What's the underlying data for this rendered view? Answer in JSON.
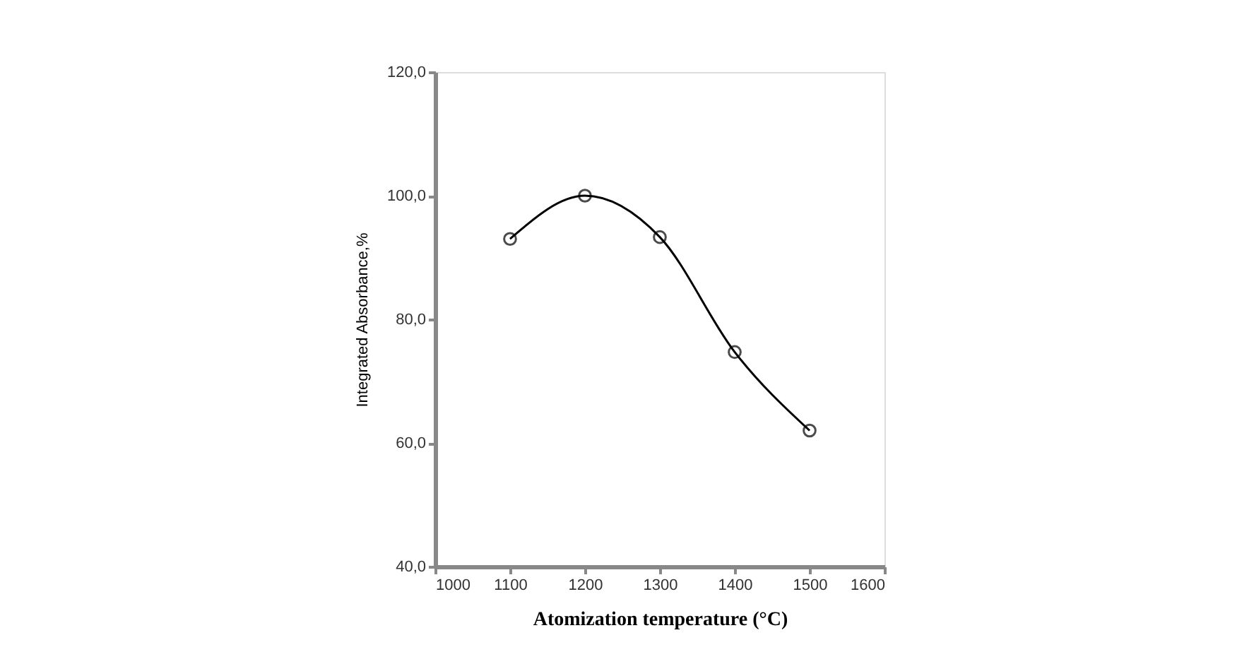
{
  "chart_data": {
    "type": "line",
    "xlabel": "Atomization temperature (°C)",
    "ylabel": "Integrated Absorbance,%",
    "x": [
      1100,
      1200,
      1300,
      1400,
      1500
    ],
    "series": [
      {
        "color": "#000000",
        "values": [
          93.0,
          100.0,
          93.3,
          74.7,
          62.0
        ]
      }
    ],
    "xlim": [
      1000,
      1600
    ],
    "xticks": [
      1000,
      1100,
      1200,
      1300,
      1400,
      1500,
      1600
    ],
    "ylim": [
      40,
      120
    ],
    "yticks": [
      {
        "value": 40,
        "label": "40,0"
      },
      {
        "value": 60,
        "label": "60,0"
      },
      {
        "value": 80,
        "label": "80,0"
      },
      {
        "value": 100,
        "label": "100,0"
      },
      {
        "value": 120,
        "label": "120,0"
      }
    ],
    "marker": "circle",
    "line_style": "solid",
    "grid": false,
    "legend": false
  }
}
